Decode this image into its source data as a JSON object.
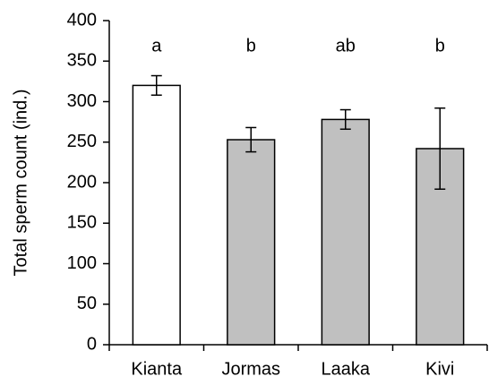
{
  "chart_data": {
    "type": "bar",
    "y_label": "Total sperm count (ind.)",
    "categories": [
      "Kianta",
      "Jormas",
      "Laaka",
      "Kivi"
    ],
    "values": [
      320,
      253,
      278,
      242
    ],
    "errors": [
      12,
      15,
      12,
      50
    ],
    "annotations": [
      "a",
      "b",
      "ab",
      "b"
    ],
    "colors": [
      "#ffffff",
      "#c0c0c0",
      "#c0c0c0",
      "#c0c0c0"
    ],
    "ylim": [
      0,
      400
    ],
    "yticks": [
      0,
      50,
      100,
      150,
      200,
      250,
      300,
      350,
      400
    ]
  }
}
